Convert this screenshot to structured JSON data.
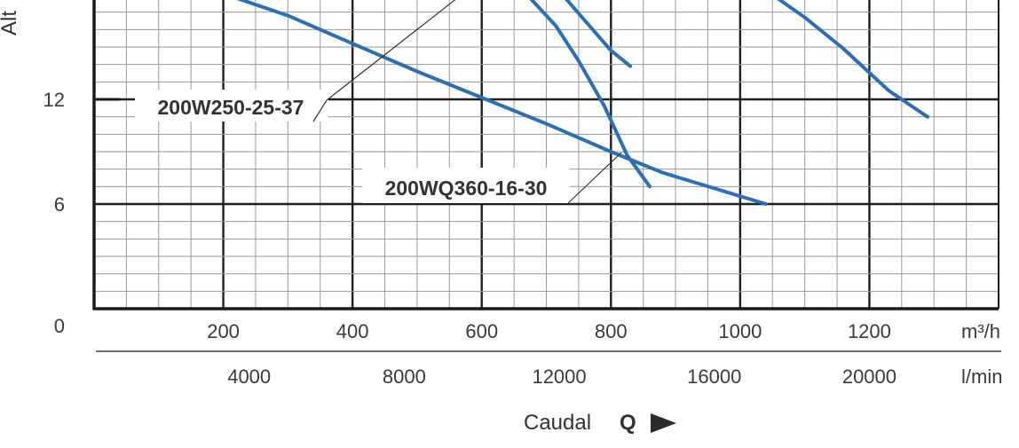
{
  "chart_data": {
    "type": "line",
    "xlabel": "Caudal",
    "xlabel_symbol": "Q",
    "ylabel_partial": "Alt",
    "x_unit_primary": "m³/h",
    "x_unit_secondary": "l/min",
    "x_ticks_primary": [
      "200",
      "400",
      "600",
      "800",
      "1000",
      "1200"
    ],
    "x_ticks_secondary": [
      "4000",
      "8000",
      "12000",
      "16000",
      "20000"
    ],
    "y_ticks": [
      "0",
      "6",
      "12"
    ],
    "xlim": [
      0,
      1400
    ],
    "ylim": [
      0,
      18
    ],
    "grid": true,
    "series": [
      {
        "name": "200W250-25-37",
        "color": "#2a6fb8",
        "x": [
          205,
          300,
          400,
          500,
          600,
          700,
          800,
          880,
          1040
        ],
        "y": [
          18,
          16.8,
          15.2,
          13.6,
          12.1,
          10.6,
          9.0,
          7.8,
          6.0
        ]
      },
      {
        "name": "200WQ360-16-30",
        "color": "#2a6fb8",
        "x": [
          670,
          715,
          750,
          790,
          825,
          860
        ],
        "y": [
          18,
          16.2,
          14.2,
          11.6,
          8.8,
          7.0
        ]
      },
      {
        "name": "",
        "color": "#2a6fb8",
        "x": [
          725,
          760,
          800,
          830
        ],
        "y": [
          18,
          16.5,
          14.8,
          13.9
        ]
      },
      {
        "name": "",
        "color": "#2a6fb8",
        "x": [
          1050,
          1100,
          1160,
          1230,
          1290
        ],
        "y": [
          18,
          16.7,
          14.9,
          12.5,
          11.0
        ]
      }
    ]
  }
}
